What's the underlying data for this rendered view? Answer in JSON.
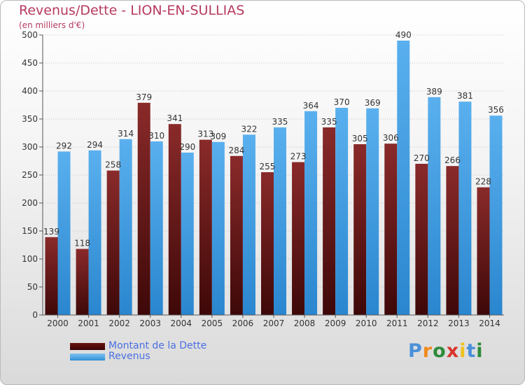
{
  "title": "Revenus/Dette - LION-EN-SULLIAS",
  "subtitle": "(en milliers d'€)",
  "chart_data": {
    "type": "bar",
    "categories": [
      "2000",
      "2001",
      "2002",
      "2003",
      "2004",
      "2005",
      "2006",
      "2007",
      "2008",
      "2009",
      "2010",
      "2011",
      "2012",
      "2013",
      "2014"
    ],
    "series": [
      {
        "name": "Montant de la Dette",
        "color": "#7a1c1c",
        "values": [
          139,
          118,
          258,
          379,
          341,
          313,
          284,
          255,
          273,
          335,
          305,
          306,
          270,
          266,
          228
        ]
      },
      {
        "name": "Revenus",
        "color": "#4aa3e6",
        "values": [
          292,
          294,
          314,
          310,
          290,
          309,
          322,
          335,
          364,
          370,
          369,
          490,
          389,
          381,
          356
        ]
      }
    ],
    "ylim": [
      0,
      500
    ],
    "yticks": [
      0,
      50,
      100,
      150,
      200,
      250,
      300,
      350,
      400,
      450,
      500
    ],
    "grid": true,
    "legend": "bottom-left"
  },
  "legend": {
    "items": [
      {
        "label": "Montant de la Dette",
        "color": "#6b1414"
      },
      {
        "label": "Revenus",
        "color": "#4aa3e6"
      }
    ]
  },
  "logo": {
    "letters": [
      "P",
      "r",
      "o",
      "x",
      "i",
      "t",
      "i"
    ],
    "colors": [
      "#4a90d9",
      "#f08a1c",
      "#2e8b3a",
      "#d9342b",
      "#f0c21c",
      "#4a90d9",
      "#2e8b3a"
    ]
  }
}
